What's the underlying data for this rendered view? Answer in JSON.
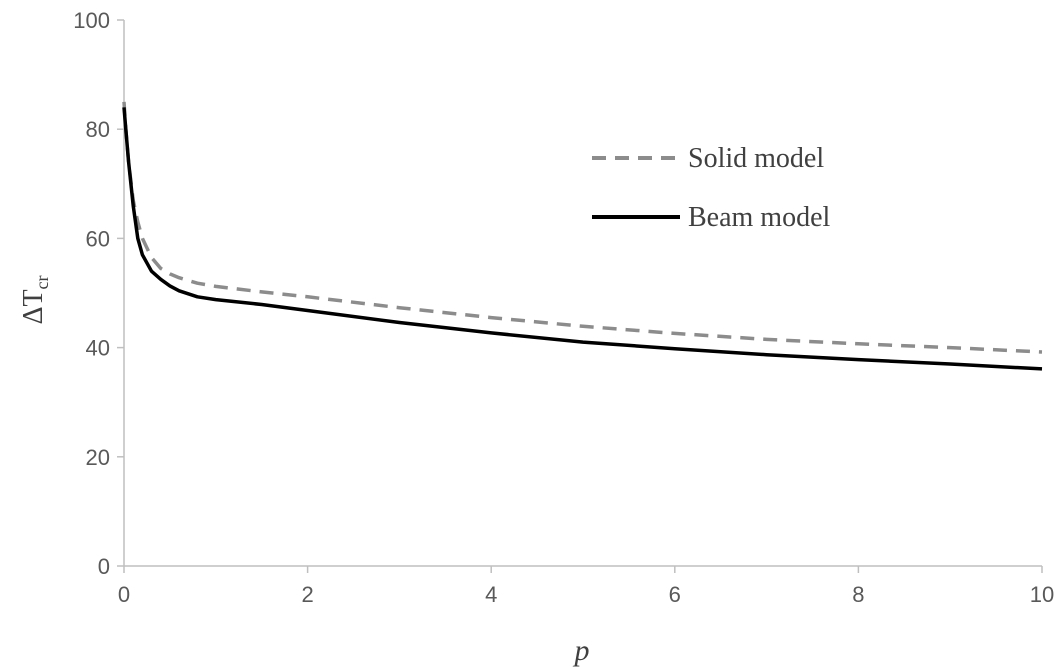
{
  "chart_data": {
    "type": "line",
    "xlabel": "p",
    "ylabel": "ΔT",
    "ylabel_sub": "cr",
    "xlim": [
      0,
      10
    ],
    "ylim": [
      0,
      100
    ],
    "xticks": [
      "0",
      "2",
      "4",
      "6",
      "8",
      "10"
    ],
    "yticks": [
      "0",
      "20",
      "40",
      "60",
      "80",
      "100"
    ],
    "grid": false,
    "legend_position": "right-upper",
    "series": [
      {
        "name": "Solid model",
        "color": "#8c8c8c",
        "style": "dashed",
        "x": [
          0,
          0.02,
          0.05,
          0.1,
          0.15,
          0.2,
          0.3,
          0.4,
          0.5,
          0.6,
          0.8,
          1,
          1.5,
          2,
          3,
          4,
          5,
          6,
          7,
          8,
          9,
          10
        ],
        "y": [
          85,
          80,
          74,
          67,
          63,
          60,
          56.5,
          54.5,
          53.5,
          52.8,
          51.8,
          51.2,
          50.2,
          49.3,
          47.3,
          45.5,
          43.9,
          42.6,
          41.5,
          40.7,
          40,
          39.2
        ]
      },
      {
        "name": "Beam model",
        "color": "#000000",
        "style": "solid",
        "x": [
          0,
          0.02,
          0.05,
          0.1,
          0.15,
          0.2,
          0.3,
          0.4,
          0.5,
          0.6,
          0.8,
          1,
          1.5,
          2,
          3,
          4,
          5,
          6,
          7,
          8,
          9,
          10
        ],
        "y": [
          84,
          80,
          74,
          66,
          60,
          57,
          54,
          52.5,
          51.3,
          50.4,
          49.3,
          48.8,
          47.9,
          46.8,
          44.6,
          42.7,
          41,
          39.8,
          38.7,
          37.8,
          37,
          36.1
        ]
      }
    ]
  }
}
